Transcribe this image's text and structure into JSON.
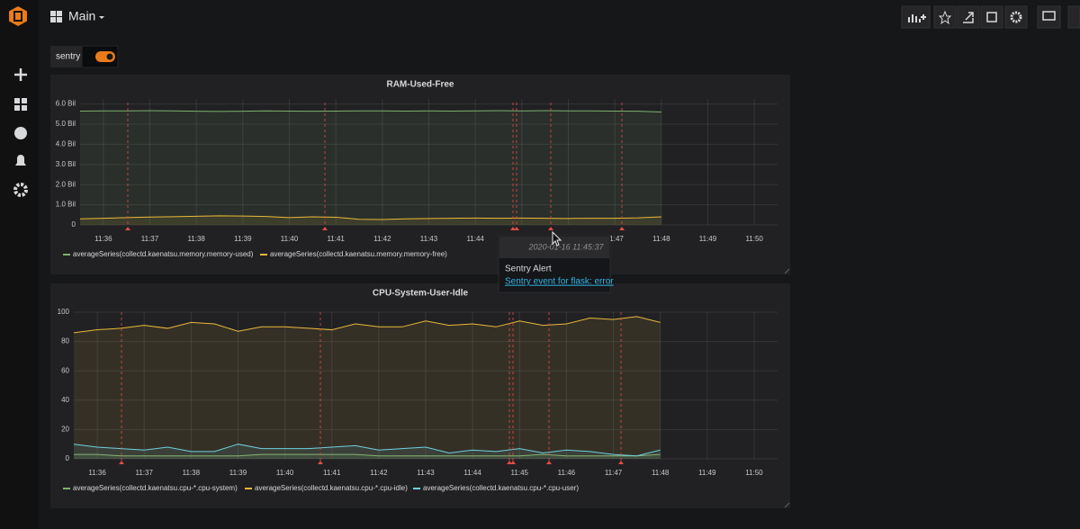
{
  "header": {
    "title": "Main"
  },
  "variables": [
    {
      "name": "sentry"
    }
  ],
  "panels": [
    {
      "chart_data": {
        "type": "line",
        "title": "RAM-Used-Free",
        "categories": [
          null,
          "11:36",
          null,
          "11:37",
          null,
          "11:38",
          null,
          "11:39",
          null,
          "11:40",
          null,
          "11:41",
          null,
          "11:42",
          null,
          "11:43",
          null,
          "11:44",
          null,
          "11:45",
          null,
          "11:46",
          null,
          "11:47",
          null,
          "11:48",
          null,
          "11:49",
          null,
          "11:50",
          null
        ],
        "series": [
          {
            "name": "averageSeries(collectd.kaenatsu.memory.memory-used)",
            "color": "#7eb26d",
            "values": [
              5.65,
              5.66,
              5.66,
              5.67,
              5.66,
              5.64,
              5.63,
              5.64,
              5.66,
              5.65,
              5.64,
              5.65,
              5.66,
              5.66,
              5.65,
              5.66,
              5.65,
              5.66,
              5.67,
              5.66,
              5.67,
              5.66,
              5.66,
              5.65,
              5.64,
              5.6,
              null,
              null,
              null,
              null,
              null
            ]
          },
          {
            "name": "averageSeries(collectd.kaenatsu.memory.memory-free)",
            "color": "#eab839",
            "values": [
              0.3,
              0.33,
              0.36,
              0.39,
              0.41,
              0.43,
              0.45,
              0.44,
              0.42,
              0.36,
              0.4,
              0.38,
              0.28,
              0.27,
              0.3,
              0.32,
              0.33,
              0.34,
              0.33,
              0.34,
              0.33,
              0.32,
              0.33,
              0.33,
              0.35,
              0.4,
              null,
              null,
              null,
              null,
              null
            ]
          }
        ],
        "ylim": [
          0,
          6.25
        ],
        "yticks": [
          0,
          {
            "value": 1,
            "label": "1.0 Bil"
          },
          {
            "value": 2,
            "label": "2.0 Bil"
          },
          {
            "value": 3,
            "label": "3.0 Bil"
          },
          {
            "value": 4,
            "label": "4.0 Bil"
          },
          {
            "value": 5,
            "label": "5.0 Bil"
          },
          {
            "value": 6,
            "label": "6.0 Bil"
          }
        ],
        "grid": true,
        "fill": true
      }
    },
    {
      "chart_data": {
        "type": "line",
        "title": "CPU-System-User-Idle",
        "categories": [
          null,
          "11:36",
          null,
          "11:37",
          null,
          "11:38",
          null,
          "11:39",
          null,
          "11:40",
          null,
          "11:41",
          null,
          "11:42",
          null,
          "11:43",
          null,
          "11:44",
          null,
          "11:45",
          null,
          "11:46",
          null,
          "11:47",
          null,
          "11:48",
          null,
          "11:49",
          null,
          "11:50",
          null
        ],
        "series": [
          {
            "name": "averageSeries(collectd.kaenatsu.cpu-*.cpu-system)",
            "color": "#7eb26d",
            "values": [
              3,
              3,
              2,
              2,
              2,
              2,
              2,
              2,
              3,
              3,
              3,
              3,
              3,
              2,
              2,
              2,
              2,
              2,
              2,
              2,
              3,
              2,
              2,
              2,
              2,
              3,
              null,
              null,
              null,
              null,
              null
            ]
          },
          {
            "name": "averageSeries(collectd.kaenatsu.cpu-*.cpu-idle)",
            "color": "#eab839",
            "values": [
              86,
              88,
              89,
              91,
              89,
              93,
              92,
              87,
              90,
              90,
              89,
              88,
              92,
              90,
              90,
              94,
              91,
              92,
              90,
              94,
              91,
              92,
              96,
              95,
              97,
              93,
              null,
              null,
              null,
              null,
              null
            ]
          },
          {
            "name": "averageSeries(collectd.kaenatsu.cpu-*.cpu-user)",
            "color": "#6ed0e0",
            "values": [
              10,
              8,
              7,
              6,
              8,
              5,
              5,
              10,
              7,
              7,
              7,
              8,
              9,
              6,
              7,
              8,
              4,
              6,
              5,
              7,
              4,
              6,
              5,
              3,
              2,
              6,
              null,
              null,
              null,
              null,
              null
            ]
          }
        ],
        "ylim": [
          0,
          100
        ],
        "yticks": [
          0,
          20,
          40,
          60,
          80,
          100
        ],
        "grid": true,
        "fill": true
      }
    }
  ],
  "tooltip": {
    "time": "2020-01-16 11:45:37",
    "title": "Sentry Alert",
    "link": "Sentry event for flask: error"
  }
}
